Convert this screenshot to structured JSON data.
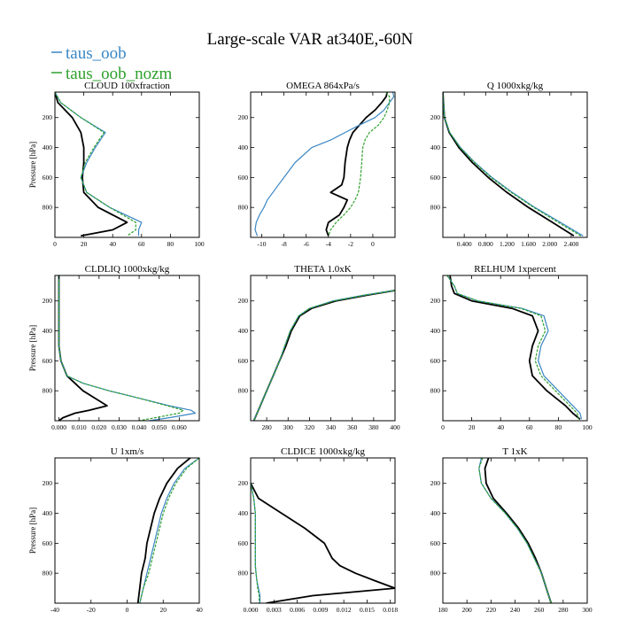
{
  "figure_title": "Large-scale VAR at340E,-60N",
  "legend": [
    {
      "name": "taus_oob",
      "color": "#3a86c3"
    },
    {
      "name": "taus_oob_nozm",
      "color": "#2ca02c"
    }
  ],
  "colors": {
    "ref": "#000000",
    "taus_oob": "#3a86c3",
    "taus_oob_nozm": "#2ca02c"
  },
  "chart_data": [
    {
      "type": "line",
      "title": "CLOUD  100xfraction",
      "ylabel": "Pressure [hPa]",
      "xlim": [
        0,
        100
      ],
      "ylim": [
        1000,
        30
      ],
      "xticks": [
        0,
        20,
        40,
        60,
        80,
        100
      ],
      "xtick_labels": [
        "0",
        "20",
        "40",
        "60",
        "80",
        "100"
      ],
      "yticks": [
        200,
        400,
        600,
        800
      ],
      "ytick_labels": [
        "200",
        "400",
        "600",
        "800"
      ],
      "y": [
        30,
        100,
        200,
        300,
        400,
        500,
        600,
        700,
        800,
        900,
        950,
        990
      ],
      "series": [
        {
          "x": [
            0,
            2,
            12,
            18,
            20,
            20,
            19,
            20,
            30,
            50,
            40,
            18
          ]
        },
        {
          "name": "taus_oob",
          "x": [
            0,
            4,
            18,
            35,
            28,
            22,
            18,
            22,
            38,
            60,
            58,
            58
          ]
        },
        {
          "name": "taus_oob_nozm",
          "x": [
            0,
            4,
            18,
            34,
            27,
            21,
            18,
            22,
            38,
            56,
            56,
            50
          ]
        }
      ]
    },
    {
      "type": "line",
      "title": "OMEGA  864xPa/s",
      "ylabel": "",
      "xlim": [
        -11,
        2
      ],
      "ylim": [
        1000,
        30
      ],
      "xticks": [
        -10,
        -8,
        -6,
        -4,
        -2,
        0
      ],
      "xtick_labels": [
        "-10",
        "-8",
        "-6",
        "-4",
        "-2",
        "0"
      ],
      "yticks": [
        200,
        400,
        600,
        800
      ],
      "ytick_labels": [
        "200",
        "400",
        "600",
        "800"
      ],
      "y": [
        30,
        60,
        100,
        150,
        200,
        250,
        300,
        350,
        400,
        500,
        600,
        650,
        700,
        750,
        800,
        850,
        900,
        950,
        990
      ],
      "series": [
        {
          "x": [
            1.3,
            1.2,
            0.8,
            0.2,
            -0.6,
            -1.2,
            -1.8,
            -2.1,
            -2.3,
            -2.5,
            -2.6,
            -2.8,
            -3.8,
            -2.3,
            -2.6,
            -3.0,
            -4.0,
            -4.2,
            -4.0
          ]
        },
        {
          "name": "taus_oob",
          "x": [
            1.8,
            1.9,
            1.5,
            1.0,
            0.2,
            -1.2,
            -2.5,
            -3.8,
            -5.5,
            -7.0,
            -8.0,
            -8.5,
            -9.0,
            -9.5,
            -9.8,
            -10.2,
            -10.5,
            -10.6,
            -10.4
          ]
        },
        {
          "name": "taus_oob_nozm",
          "x": [
            1.2,
            1.5,
            1.5,
            1.3,
            1.0,
            0.5,
            -0.3,
            -0.7,
            -0.9,
            -1.0,
            -1.1,
            -1.2,
            -1.3,
            -1.6,
            -2.0,
            -2.6,
            -3.3,
            -3.8,
            -4.0
          ]
        }
      ]
    },
    {
      "type": "line",
      "title": "Q  1000xkg/kg",
      "ylabel": "",
      "xlim": [
        0,
        2.7
      ],
      "ylim": [
        1000,
        30
      ],
      "xticks": [
        0.4,
        0.8,
        1.2,
        1.6,
        2.0,
        2.4
      ],
      "xtick_labels": [
        "0.400",
        "0.800",
        "1.200",
        "1.600",
        "2.000",
        "2.400"
      ],
      "yticks": [
        200,
        400,
        600,
        800
      ],
      "ytick_labels": [
        "200",
        "400",
        "600",
        "800"
      ],
      "y": [
        30,
        200,
        300,
        400,
        500,
        600,
        700,
        800,
        900,
        990
      ],
      "series": [
        {
          "x": [
            0.0,
            0.03,
            0.12,
            0.3,
            0.55,
            0.85,
            1.2,
            1.6,
            2.05,
            2.45
          ]
        },
        {
          "name": "taus_oob",
          "x": [
            0.0,
            0.03,
            0.13,
            0.33,
            0.6,
            0.92,
            1.3,
            1.72,
            2.2,
            2.62
          ]
        },
        {
          "name": "taus_oob_nozm",
          "x": [
            0.0,
            0.03,
            0.13,
            0.32,
            0.59,
            0.9,
            1.28,
            1.7,
            2.16,
            2.58
          ]
        }
      ]
    },
    {
      "type": "line",
      "title": "CLDLIQ  1000xkg/kg",
      "ylabel": "Pressure [hPa]",
      "xlim": [
        -0.002,
        0.07
      ],
      "ylim": [
        1000,
        30
      ],
      "xticks": [
        0.0,
        0.01,
        0.02,
        0.03,
        0.04,
        0.05,
        0.06
      ],
      "xtick_labels": [
        "0.000",
        "0.010",
        "0.020",
        "0.030",
        "0.040",
        "0.050",
        "0.060"
      ],
      "yticks": [
        200,
        400,
        600,
        800
      ],
      "ytick_labels": [
        "200",
        "400",
        "600",
        "800"
      ],
      "y": [
        30,
        500,
        600,
        700,
        750,
        800,
        850,
        900,
        930,
        950,
        980,
        1000
      ],
      "series": [
        {
          "x": [
            0.0,
            0.0,
            0.001,
            0.004,
            0.008,
            0.012,
            0.018,
            0.024,
            0.015,
            0.008,
            0.002,
            0.0
          ]
        },
        {
          "name": "taus_oob",
          "x": [
            0.0,
            0.0,
            0.001,
            0.004,
            0.012,
            0.025,
            0.04,
            0.055,
            0.066,
            0.068,
            0.055,
            0.045
          ]
        },
        {
          "name": "taus_oob_nozm",
          "x": [
            0.0,
            0.0,
            0.001,
            0.004,
            0.012,
            0.025,
            0.04,
            0.054,
            0.062,
            0.06,
            0.048,
            0.04
          ]
        }
      ]
    },
    {
      "type": "line",
      "title": "THETA  1.0xK",
      "ylabel": "",
      "xlim": [
        265,
        400
      ],
      "ylim": [
        1000,
        30
      ],
      "xticks": [
        280,
        300,
        320,
        340,
        360,
        380,
        400
      ],
      "xtick_labels": [
        "280",
        "300",
        "320",
        "340",
        "360",
        "380",
        "400"
      ],
      "yticks": [
        200,
        400,
        600,
        800
      ],
      "ytick_labels": [
        "200",
        "400",
        "600",
        "800"
      ],
      "y": [
        130,
        160,
        200,
        250,
        300,
        400,
        500,
        600,
        700,
        800,
        900,
        1000
      ],
      "series": [
        {
          "x": [
            400,
            375,
            345,
            322,
            311,
            303,
            298,
            292,
            286,
            280,
            274,
            268
          ]
        },
        {
          "name": "taus_oob",
          "x": [
            400,
            372,
            342,
            320,
            310,
            302,
            297,
            292,
            286,
            280,
            274,
            268
          ]
        },
        {
          "name": "taus_oob_nozm",
          "x": [
            400,
            373,
            343,
            320,
            310,
            302,
            297,
            292,
            286,
            280,
            274,
            268
          ]
        }
      ]
    },
    {
      "type": "line",
      "title": "RELHUM  1xpercent",
      "ylabel": "",
      "xlim": [
        0,
        100
      ],
      "ylim": [
        1000,
        30
      ],
      "xticks": [
        0,
        20,
        40,
        60,
        80,
        100
      ],
      "xtick_labels": [
        "0",
        "20",
        "40",
        "60",
        "80",
        "100"
      ],
      "yticks": [
        200,
        400,
        600,
        800
      ],
      "ytick_labels": [
        "200",
        "400",
        "600",
        "800"
      ],
      "y": [
        30,
        100,
        150,
        200,
        250,
        300,
        400,
        500,
        600,
        700,
        800,
        900,
        950,
        990
      ],
      "series": [
        {
          "x": [
            5,
            6,
            8,
            20,
            48,
            62,
            66,
            62,
            60,
            62,
            72,
            85,
            90,
            95
          ]
        },
        {
          "name": "taus_oob",
          "x": [
            3,
            8,
            10,
            24,
            55,
            70,
            73,
            68,
            66,
            70,
            80,
            90,
            95,
            96
          ]
        },
        {
          "name": "taus_oob_nozm",
          "x": [
            3,
            8,
            10,
            24,
            54,
            68,
            71,
            66,
            64,
            68,
            78,
            88,
            93,
            94
          ]
        }
      ]
    },
    {
      "type": "line",
      "title": "U  1xm/s",
      "ylabel": "Pressure [hPa]",
      "xlim": [
        -40,
        40
      ],
      "ylim": [
        1000,
        30
      ],
      "xticks": [
        -40,
        -20,
        0,
        20,
        40
      ],
      "xtick_labels": [
        "-40",
        "-20",
        "0",
        "20",
        "40"
      ],
      "yticks": [
        200,
        400,
        600,
        800
      ],
      "ytick_labels": [
        "200",
        "400",
        "600",
        "800"
      ],
      "y": [
        30,
        100,
        200,
        300,
        400,
        500,
        600,
        700,
        800,
        900,
        1000
      ],
      "series": [
        {
          "x": [
            35,
            28,
            22,
            18,
            15,
            13,
            11,
            10,
            8,
            7,
            6
          ]
        },
        {
          "name": "taus_oob",
          "x": [
            40,
            32,
            26,
            22,
            19,
            17,
            15,
            13,
            11,
            9,
            7
          ]
        },
        {
          "name": "taus_oob_nozm",
          "x": [
            40,
            33,
            27,
            23,
            20,
            18,
            16,
            14,
            12,
            9,
            7
          ]
        }
      ]
    },
    {
      "type": "line",
      "title": "CLDICE  1000xkg/kg",
      "ylabel": "",
      "xlim": [
        0,
        0.0186
      ],
      "ylim": [
        1000,
        30
      ],
      "xticks": [
        0.0,
        0.003,
        0.006,
        0.009,
        0.012,
        0.015,
        0.018
      ],
      "xtick_labels": [
        "0.000",
        "0.003",
        "0.006",
        "0.009",
        "0.012",
        "0.015",
        "0.018"
      ],
      "yticks": [
        200,
        400,
        600,
        800
      ],
      "ytick_labels": [
        "200",
        "400",
        "600",
        "800"
      ],
      "y": [
        200,
        300,
        400,
        500,
        600,
        700,
        750,
        800,
        850,
        900,
        950,
        1000
      ],
      "series": [
        {
          "x": [
            0.0,
            0.001,
            0.004,
            0.007,
            0.0095,
            0.0105,
            0.0115,
            0.0135,
            0.016,
            0.0186,
            0.008,
            0.002
          ]
        },
        {
          "name": "taus_oob",
          "x": [
            0.0,
            0.0004,
            0.0006,
            0.0006,
            0.0006,
            0.0006,
            0.0006,
            0.0007,
            0.0008,
            0.001,
            0.0012,
            0.0012
          ]
        },
        {
          "name": "taus_oob_nozm",
          "x": [
            0.0,
            0.0004,
            0.0006,
            0.0006,
            0.0006,
            0.0006,
            0.0006,
            0.0007,
            0.0008,
            0.0009,
            0.0011,
            0.0011
          ]
        }
      ]
    },
    {
      "type": "line",
      "title": "T  1xK",
      "ylabel": "",
      "xlim": [
        180,
        300
      ],
      "ylim": [
        1000,
        30
      ],
      "xticks": [
        180,
        200,
        220,
        240,
        260,
        280,
        300
      ],
      "xtick_labels": [
        "180",
        "200",
        "220",
        "240",
        "260",
        "280",
        "300"
      ],
      "yticks": [
        200,
        400,
        600,
        800
      ],
      "ytick_labels": [
        "200",
        "400",
        "600",
        "800"
      ],
      "y": [
        30,
        100,
        200,
        300,
        400,
        500,
        600,
        700,
        800,
        900,
        1000
      ],
      "series": [
        {
          "x": [
            218,
            215,
            216,
            222,
            233,
            243,
            251,
            257,
            262,
            266,
            270
          ]
        },
        {
          "name": "taus_oob",
          "x": [
            212,
            210,
            212,
            220,
            232,
            242,
            250,
            256,
            262,
            266,
            270
          ]
        },
        {
          "name": "taus_oob_nozm",
          "x": [
            213,
            210,
            212,
            220,
            232,
            242,
            250,
            256,
            262,
            266,
            270
          ]
        }
      ]
    }
  ]
}
